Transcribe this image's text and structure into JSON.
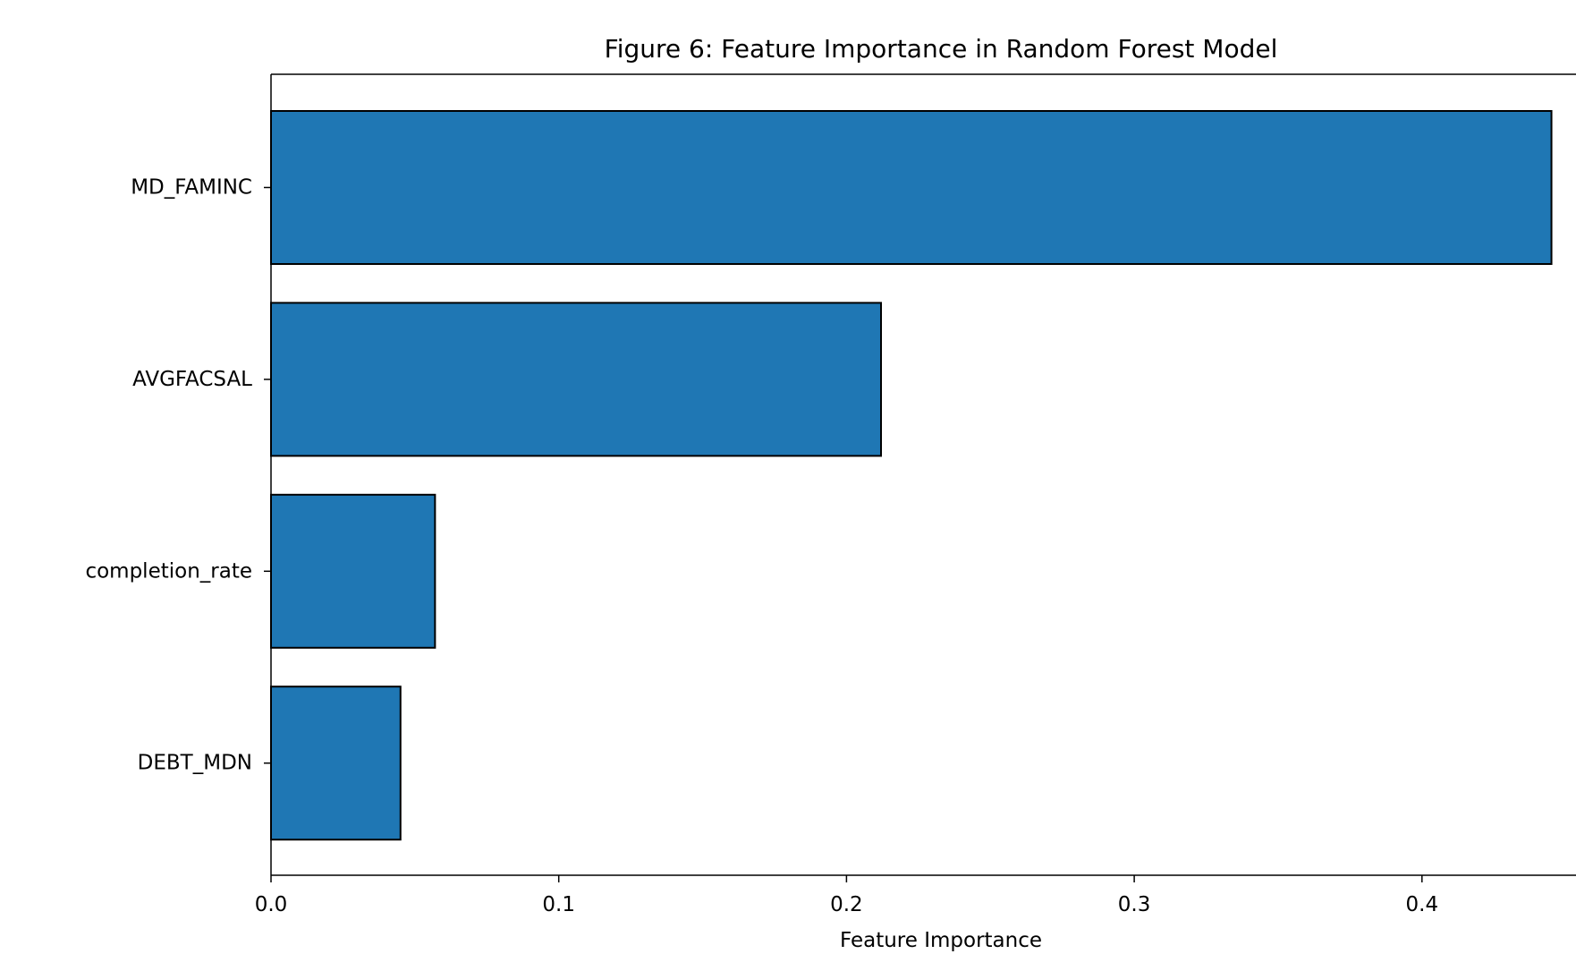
{
  "chart_data": {
    "type": "bar",
    "orientation": "horizontal",
    "title": "Figure 6: Feature Importance in Random Forest Model",
    "xlabel": "Feature Importance",
    "ylabel": "",
    "categories": [
      "MD_FAMINC",
      "AVGFACSAL",
      "completion_rate",
      "DEBT_MDN"
    ],
    "values": [
      0.445,
      0.212,
      0.057,
      0.045
    ],
    "xlim": [
      0,
      0.45
    ],
    "xticks": [
      0.0,
      0.1,
      0.2,
      0.3,
      0.4
    ],
    "xtick_labels": [
      "0.0",
      "0.1",
      "0.2",
      "0.3",
      "0.4"
    ],
    "grid": false,
    "legend": "none",
    "colors": {
      "bar_fill": "#1f77b4",
      "bar_edge": "#000000",
      "axis": "#000000",
      "text": "#000000"
    }
  }
}
